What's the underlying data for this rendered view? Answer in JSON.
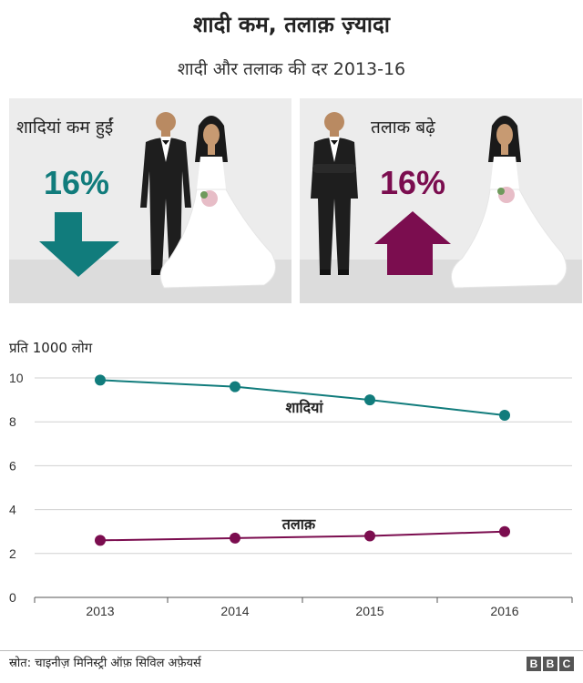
{
  "header": {
    "title": "शादी कम, तलाक़ ज़्यादा",
    "subtitle": "शादी और तलाक की दर 2013-16"
  },
  "panels": {
    "marriages": {
      "label": "शादियां कम हुईं",
      "percent": "16%",
      "direction": "down",
      "color": "#117c7c"
    },
    "divorces": {
      "label": "तलाक बढ़े",
      "percent": "16%",
      "direction": "up",
      "color": "#7b0d4f"
    }
  },
  "chart_data": {
    "type": "line",
    "ylabel": "प्रति 1000 लोग",
    "x": [
      "2013",
      "2014",
      "2015",
      "2016"
    ],
    "ylim": [
      0,
      10
    ],
    "yticks": [
      "0",
      "2",
      "4",
      "6",
      "8",
      "10"
    ],
    "grid": true,
    "series": [
      {
        "name": "शादियां",
        "values": [
          9.9,
          9.6,
          9.0,
          8.3
        ],
        "color": "#117c7c"
      },
      {
        "name": "तलाक़",
        "values": [
          2.6,
          2.7,
          2.8,
          3.0
        ],
        "color": "#7b0d4f"
      }
    ]
  },
  "footer": {
    "source": "स्रोत: चाइनीज़ मिनिस्ट्री ऑफ़ सिविल अफ़ेयर्स",
    "brand": [
      "B",
      "B",
      "C"
    ]
  }
}
